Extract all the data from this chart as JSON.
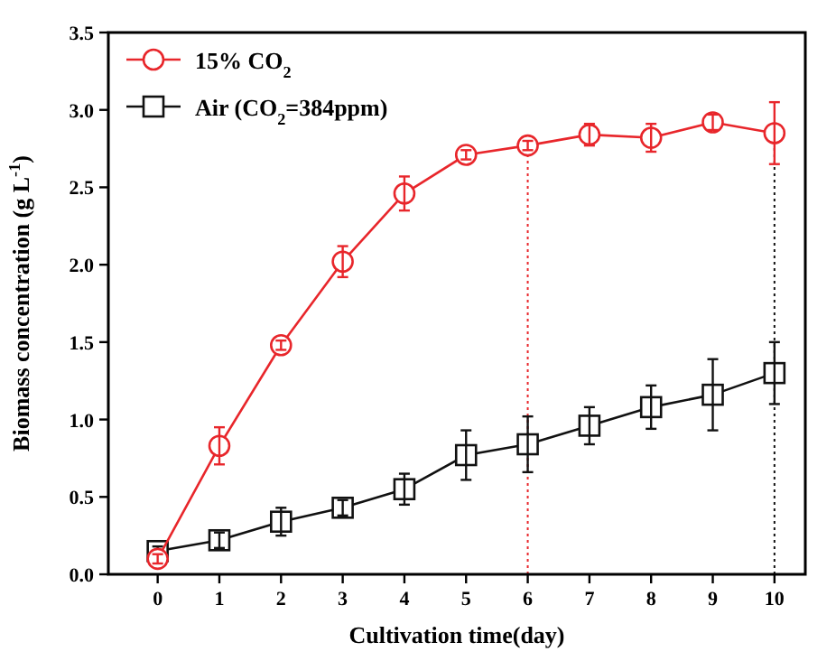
{
  "chart_data": {
    "type": "line",
    "xlabel": "Cultivation time(day)",
    "ylabel": "Biomass concentration (g L$^{-1}$)",
    "x": [
      0,
      1,
      2,
      3,
      4,
      5,
      6,
      7,
      8,
      9,
      10
    ],
    "xlim": [
      -0.8,
      10.5
    ],
    "xticks": [
      0,
      1,
      2,
      3,
      4,
      5,
      6,
      7,
      8,
      9,
      10
    ],
    "ylim": [
      0,
      3.5
    ],
    "yticks": [
      {
        "value": 0,
        "label": "0.0"
      },
      {
        "value": 0.5,
        "label": "0.5"
      },
      {
        "value": 1,
        "label": "1.0"
      },
      {
        "value": 1.5,
        "label": "1.5"
      },
      {
        "value": 2,
        "label": "2.0"
      },
      {
        "value": 2.5,
        "label": "2.5"
      },
      {
        "value": 3,
        "label": "3.0"
      },
      {
        "value": 3.5,
        "label": "3.5"
      }
    ],
    "series": [
      {
        "name": "15% CO$_{2}$",
        "color": "#e8262b",
        "marker": "circle",
        "values": [
          0.1,
          0.83,
          1.48,
          2.02,
          2.46,
          2.71,
          2.77,
          2.84,
          2.82,
          2.92,
          2.85
        ],
        "errors": [
          0.03,
          0.12,
          0.03,
          0.1,
          0.11,
          0.03,
          0.03,
          0.07,
          0.09,
          0.05,
          0.2
        ]
      },
      {
        "name": "Air (CO$_{2}$=384ppm)",
        "color": "#111111",
        "marker": "square",
        "values": [
          0.15,
          0.22,
          0.34,
          0.43,
          0.55,
          0.77,
          0.84,
          0.96,
          1.08,
          1.16,
          1.3
        ],
        "errors": [
          0.03,
          0.05,
          0.09,
          0.05,
          0.1,
          0.16,
          0.18,
          0.12,
          0.14,
          0.23,
          0.2
        ]
      }
    ],
    "ref_lines": [
      {
        "axis": "x",
        "value": 6,
        "color": "#e8262b",
        "line_style": "dotted"
      },
      {
        "axis": "x",
        "value": 10,
        "color": "#111111",
        "line_style": "dotted"
      }
    ],
    "legend": "top left",
    "grid": false
  }
}
